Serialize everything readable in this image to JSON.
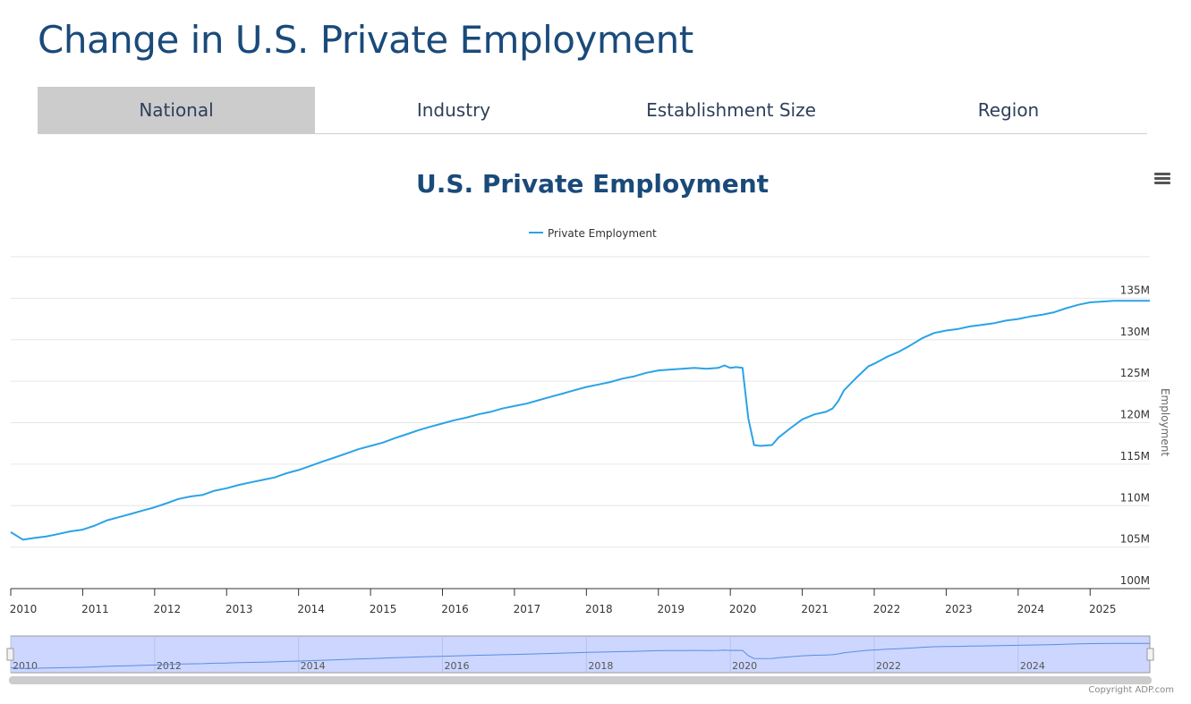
{
  "page": {
    "title": "Change in U.S. Private Employment",
    "tabs": [
      "National",
      "Industry",
      "Establishment Size",
      "Region"
    ],
    "active_tab": "National",
    "copyright": "Copyright ADP.com"
  },
  "chart_data": {
    "type": "line",
    "title": "U.S. Private Employment",
    "xlabel": "",
    "ylabel": "Employment",
    "xlim": [
      2010.0,
      2025.83
    ],
    "ylim": [
      100,
      140
    ],
    "y_tick_step": 5,
    "y_tick_suffix": "M",
    "color": "#2ba3e6",
    "x_ticks": [
      "2010",
      "2011",
      "2012",
      "2013",
      "2014",
      "2015",
      "2016",
      "2017",
      "2018",
      "2019",
      "2020",
      "2021",
      "2022",
      "2023",
      "2024",
      "2025"
    ],
    "navigator_ticks": [
      "2010",
      "2012",
      "2014",
      "2016",
      "2018",
      "2020",
      "2022",
      "2024"
    ],
    "legend": "top-center",
    "series": [
      {
        "name": "Private Employment",
        "points": [
          [
            2010.0,
            106.8
          ],
          [
            2010.17,
            105.9
          ],
          [
            2010.33,
            106.1
          ],
          [
            2010.5,
            106.3
          ],
          [
            2010.67,
            106.6
          ],
          [
            2010.83,
            106.9
          ],
          [
            2011.0,
            107.1
          ],
          [
            2011.17,
            107.6
          ],
          [
            2011.33,
            108.2
          ],
          [
            2011.5,
            108.6
          ],
          [
            2011.67,
            109.0
          ],
          [
            2011.83,
            109.4
          ],
          [
            2012.0,
            109.8
          ],
          [
            2012.17,
            110.3
          ],
          [
            2012.33,
            110.8
          ],
          [
            2012.5,
            111.1
          ],
          [
            2012.67,
            111.3
          ],
          [
            2012.83,
            111.8
          ],
          [
            2013.0,
            112.1
          ],
          [
            2013.17,
            112.5
          ],
          [
            2013.33,
            112.8
          ],
          [
            2013.5,
            113.1
          ],
          [
            2013.67,
            113.4
          ],
          [
            2013.83,
            113.9
          ],
          [
            2014.0,
            114.3
          ],
          [
            2014.17,
            114.8
          ],
          [
            2014.33,
            115.3
          ],
          [
            2014.5,
            115.8
          ],
          [
            2014.67,
            116.3
          ],
          [
            2014.83,
            116.8
          ],
          [
            2015.0,
            117.2
          ],
          [
            2015.17,
            117.6
          ],
          [
            2015.33,
            118.1
          ],
          [
            2015.5,
            118.6
          ],
          [
            2015.67,
            119.1
          ],
          [
            2015.83,
            119.5
          ],
          [
            2016.0,
            119.9
          ],
          [
            2016.17,
            120.3
          ],
          [
            2016.33,
            120.6
          ],
          [
            2016.5,
            121.0
          ],
          [
            2016.67,
            121.3
          ],
          [
            2016.83,
            121.7
          ],
          [
            2017.0,
            122.0
          ],
          [
            2017.17,
            122.3
          ],
          [
            2017.33,
            122.7
          ],
          [
            2017.5,
            123.1
          ],
          [
            2017.67,
            123.5
          ],
          [
            2017.83,
            123.9
          ],
          [
            2018.0,
            124.3
          ],
          [
            2018.17,
            124.6
          ],
          [
            2018.33,
            124.9
          ],
          [
            2018.5,
            125.3
          ],
          [
            2018.67,
            125.6
          ],
          [
            2018.83,
            126.0
          ],
          [
            2019.0,
            126.3
          ],
          [
            2019.17,
            126.4
          ],
          [
            2019.33,
            126.5
          ],
          [
            2019.5,
            126.6
          ],
          [
            2019.67,
            126.5
          ],
          [
            2019.83,
            126.6
          ],
          [
            2019.92,
            126.9
          ],
          [
            2020.0,
            126.6
          ],
          [
            2020.08,
            126.7
          ],
          [
            2020.17,
            126.6
          ],
          [
            2020.25,
            120.5
          ],
          [
            2020.33,
            117.3
          ],
          [
            2020.42,
            117.2
          ],
          [
            2020.58,
            117.3
          ],
          [
            2020.67,
            118.2
          ],
          [
            2020.83,
            119.3
          ],
          [
            2021.0,
            120.4
          ],
          [
            2021.17,
            121.0
          ],
          [
            2021.33,
            121.3
          ],
          [
            2021.42,
            121.7
          ],
          [
            2021.5,
            122.6
          ],
          [
            2021.58,
            123.9
          ],
          [
            2021.75,
            125.4
          ],
          [
            2021.92,
            126.8
          ],
          [
            2022.0,
            127.1
          ],
          [
            2022.17,
            127.9
          ],
          [
            2022.33,
            128.5
          ],
          [
            2022.5,
            129.3
          ],
          [
            2022.67,
            130.2
          ],
          [
            2022.83,
            130.8
          ],
          [
            2023.0,
            131.1
          ],
          [
            2023.17,
            131.3
          ],
          [
            2023.33,
            131.6
          ],
          [
            2023.5,
            131.8
          ],
          [
            2023.67,
            132.0
          ],
          [
            2023.83,
            132.3
          ],
          [
            2024.0,
            132.5
          ],
          [
            2024.17,
            132.8
          ],
          [
            2024.33,
            133.0
          ],
          [
            2024.5,
            133.3
          ],
          [
            2024.67,
            133.8
          ],
          [
            2024.83,
            134.2
          ],
          [
            2025.0,
            134.5
          ],
          [
            2025.17,
            134.6
          ],
          [
            2025.33,
            134.7
          ],
          [
            2025.5,
            134.7
          ],
          [
            2025.67,
            134.7
          ],
          [
            2025.83,
            134.7
          ]
        ]
      }
    ]
  }
}
